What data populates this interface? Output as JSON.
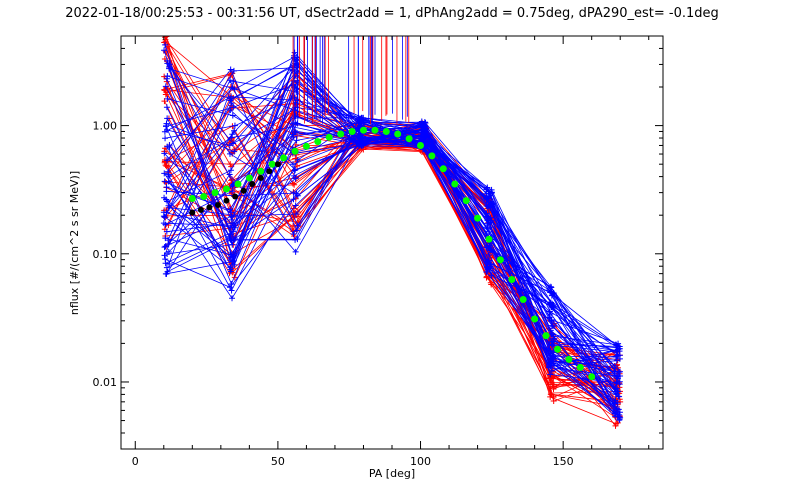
{
  "chart_data": {
    "type": "scatter",
    "title": "2022-01-18/00:25:53 - 00:31:56 UT, dSectr2add = 1, dPhAng2add = 0.75deg, dPA290_est=  -0.1deg",
    "xlabel": "PA [deg]",
    "ylabel": "nflux [#/(cm^2 s sr MeV)]",
    "xlim": [
      -5,
      185
    ],
    "ylim": [
      0.003,
      5
    ],
    "yscale": "log",
    "xticks": [
      0,
      50,
      100,
      150
    ],
    "xtick_labels": [
      "0",
      "50",
      "100",
      "150"
    ],
    "yticks": [
      0.01,
      0.1,
      1
    ],
    "ytick_labels": [
      "0.01",
      "0.10",
      "1.00"
    ],
    "grid": false,
    "colors": {
      "red": "#ff0000",
      "blue": "#0000ff",
      "green": "#00ff00",
      "black": "#000000",
      "axis": "#000000"
    },
    "pa_bins": [
      11,
      34,
      56,
      79,
      101,
      124,
      146,
      169
    ],
    "profile_pa": [
      11,
      34,
      56,
      79,
      101,
      124,
      146,
      169
    ],
    "profile_red": [
      0.8,
      0.45,
      0.6,
      0.85,
      0.8,
      0.12,
      0.015,
      0.009
    ],
    "profile_blue": [
      0.55,
      0.35,
      0.6,
      0.9,
      0.85,
      0.15,
      0.025,
      0.01
    ],
    "fit_green": {
      "x": [
        20,
        24,
        28,
        32,
        36,
        40,
        44,
        48,
        52,
        56,
        60,
        64,
        68,
        72,
        76,
        80,
        84,
        88,
        92,
        96,
        100,
        104,
        108,
        112,
        116,
        120,
        124,
        128,
        132,
        136,
        140,
        144,
        148,
        152,
        156,
        160
      ],
      "y": [
        0.27,
        0.28,
        0.3,
        0.32,
        0.35,
        0.39,
        0.44,
        0.5,
        0.56,
        0.63,
        0.69,
        0.75,
        0.81,
        0.86,
        0.9,
        0.92,
        0.92,
        0.9,
        0.86,
        0.79,
        0.7,
        0.58,
        0.46,
        0.35,
        0.26,
        0.19,
        0.13,
        0.09,
        0.063,
        0.044,
        0.031,
        0.023,
        0.018,
        0.015,
        0.013,
        0.011
      ]
    },
    "fit_black": {
      "x": [
        20,
        23,
        26,
        29,
        32,
        35,
        38,
        41,
        44,
        47,
        50
      ],
      "y": [
        0.21,
        0.22,
        0.23,
        0.24,
        0.26,
        0.28,
        0.31,
        0.35,
        0.39,
        0.44,
        0.5
      ]
    }
  }
}
